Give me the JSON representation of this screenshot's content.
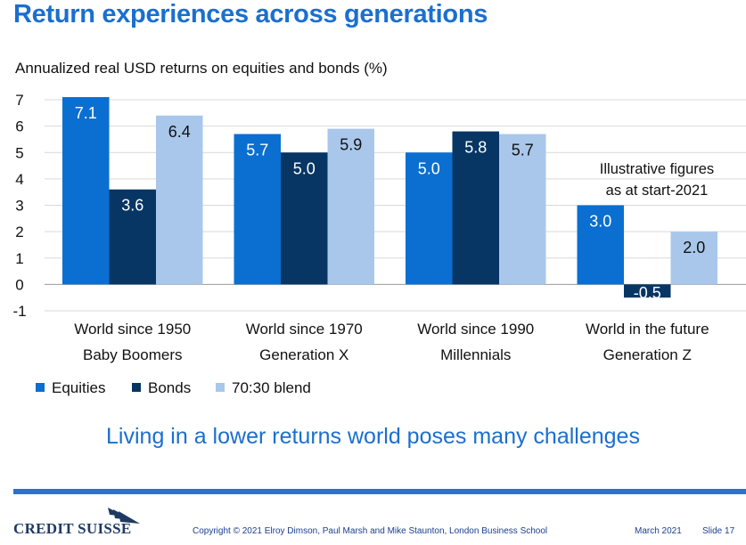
{
  "title": "Return experiences across generations",
  "subtitle": "Annualized real USD returns on equities and bonds (%)",
  "chart_data": {
    "type": "bar",
    "categories": [
      [
        "World since 1950",
        "Baby Boomers"
      ],
      [
        "World since 1970",
        "Generation X"
      ],
      [
        "World since 1990",
        "Millennials"
      ],
      [
        "World in the future",
        "Generation Z"
      ]
    ],
    "series": [
      {
        "name": "Equities",
        "color": "#0a6fd0",
        "values": [
          7.1,
          5.7,
          5.0,
          3.0
        ],
        "labels": [
          "7.1",
          "5.7",
          "5.0",
          "3.0"
        ],
        "label_color": "#ffffff"
      },
      {
        "name": "Bonds",
        "color": "#073665",
        "values": [
          3.6,
          5.0,
          5.8,
          -0.5
        ],
        "labels": [
          "3.6",
          "5.0",
          "5.8",
          "-0.5"
        ],
        "label_color": "#ffffff"
      },
      {
        "name": "70:30 blend",
        "color": "#a9c7eb",
        "values": [
          6.4,
          5.9,
          5.7,
          2.0
        ],
        "labels": [
          "6.4",
          "5.9",
          "5.7",
          "2.0"
        ],
        "label_color": "#111111"
      }
    ],
    "ylim": [
      -1,
      7
    ],
    "yticks": [
      -1,
      0,
      1,
      2,
      3,
      4,
      5,
      6,
      7
    ],
    "grid": true,
    "legend": "bottom-left",
    "annotation": [
      "Illustrative figures",
      "as at start-2021"
    ]
  },
  "takeaway": "Living in a lower returns world poses many challenges",
  "footer": {
    "logo": "CREDIT SUISSE",
    "copyright": "Copyright © 2021 Elroy Dimson, Paul Marsh and Mike Staunton, London Business School",
    "date": "March 2021",
    "slide": "Slide 17"
  }
}
